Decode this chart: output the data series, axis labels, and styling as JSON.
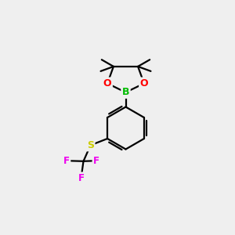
{
  "background_color": "#efefef",
  "bond_color": "#000000",
  "atom_colors": {
    "B": "#00bb00",
    "O": "#ff0000",
    "S": "#cccc00",
    "F": "#ee00ee",
    "C": "#000000"
  },
  "figsize": [
    3.0,
    3.0
  ],
  "dpi": 100
}
